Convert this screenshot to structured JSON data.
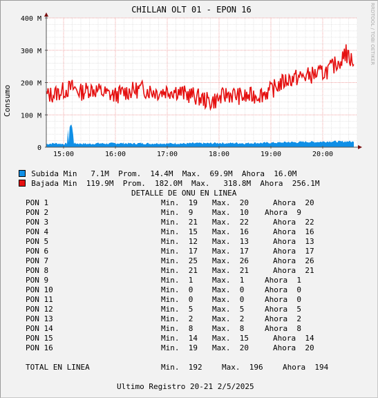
{
  "watermark": "RRDTOOL / TOBI OETIKER",
  "chart_data": {
    "type": "area",
    "title": "CHILLAN OLT 01 - EPON 16",
    "xlabel": "",
    "ylabel": "Consumo",
    "xlim": [
      "14:40",
      "20:40"
    ],
    "ylim": [
      0,
      400
    ],
    "y_unit": "M",
    "y_ticks": [
      0,
      100,
      200,
      300,
      400
    ],
    "y_tick_labels": [
      "0",
      "100 M",
      "200 M",
      "300 M",
      "400 M"
    ],
    "x_ticks": [
      "15:00",
      "16:00",
      "17:00",
      "18:00",
      "19:00",
      "20:00"
    ],
    "grid": true,
    "series": [
      {
        "name": "Subida",
        "style": "area",
        "color": "#0f8fe6",
        "x": [
          "14:40",
          "14:50",
          "15:00",
          "15:10",
          "15:20",
          "15:30",
          "15:40",
          "15:50",
          "16:00",
          "16:10",
          "16:20",
          "16:30",
          "16:40",
          "16:50",
          "17:00",
          "17:10",
          "17:20",
          "17:30",
          "17:40",
          "17:50",
          "18:00",
          "18:10",
          "18:20",
          "18:30",
          "18:40",
          "18:50",
          "19:00",
          "19:10",
          "19:20",
          "19:30",
          "19:40",
          "19:50",
          "20:00",
          "20:10",
          "20:20",
          "20:30",
          "20:36"
        ],
        "values": [
          10,
          12,
          10,
          12,
          11,
          10,
          12,
          11,
          12,
          12,
          11,
          12,
          11,
          12,
          11,
          12,
          11,
          12,
          12,
          12,
          13,
          12,
          13,
          12,
          13,
          13,
          14,
          14,
          16,
          15,
          17,
          16,
          17,
          18,
          17,
          18,
          16
        ]
      },
      {
        "name": "Bajada",
        "style": "line",
        "color": "#e51010",
        "x": [
          "14:40",
          "14:50",
          "15:00",
          "15:10",
          "15:20",
          "15:30",
          "15:40",
          "15:50",
          "16:00",
          "16:10",
          "16:20",
          "16:30",
          "16:40",
          "16:50",
          "17:00",
          "17:10",
          "17:20",
          "17:30",
          "17:40",
          "17:50",
          "18:00",
          "18:10",
          "18:20",
          "18:30",
          "18:40",
          "18:50",
          "19:00",
          "19:10",
          "19:20",
          "19:30",
          "19:40",
          "19:50",
          "20:00",
          "20:10",
          "20:20",
          "20:30",
          "20:36"
        ],
        "values": [
          160,
          165,
          175,
          185,
          170,
          180,
          175,
          165,
          160,
          170,
          175,
          180,
          175,
          170,
          175,
          175,
          165,
          160,
          150,
          140,
          150,
          165,
          160,
          155,
          160,
          165,
          175,
          195,
          210,
          215,
          220,
          225,
          230,
          245,
          270,
          285,
          256
        ]
      }
    ],
    "spikes": [
      {
        "series": "Subida",
        "x": [
          "15:05",
          "15:07",
          "15:08",
          "15:09",
          "15:10",
          "15:11"
        ],
        "values": [
          55,
          62,
          68,
          70,
          60,
          40
        ]
      },
      {
        "series": "Bajada",
        "x": [
          "20:25",
          "20:27",
          "20:29"
        ],
        "values": [
          305,
          318,
          300
        ]
      }
    ]
  },
  "legend": {
    "subida": "Subida Min   7.1M  Prom.  14.4M  Max.  69.9M  Ahora  16.0M",
    "bajada": "Bajada Min  119.9M  Prom.  182.0M  Max.   318.8M  Ahora  256.1M"
  },
  "detail": {
    "heading": "DETALLE DE ONU EN LINEA",
    "rows": [
      {
        "name": "PON 1",
        "min": "Min.  19",
        "max": "Max.  20",
        "now": "Ahora  20"
      },
      {
        "name": "PON 2",
        "min": "Min.  9",
        "max": "Max.  10",
        "now": "Ahora  9"
      },
      {
        "name": "PON 3",
        "min": "Min.  21",
        "max": "Max.  22",
        "now": "Ahora  22"
      },
      {
        "name": "PON 4",
        "min": "Min.  15",
        "max": "Max.  16",
        "now": "Ahora  16"
      },
      {
        "name": "PON 5",
        "min": "Min.  12",
        "max": "Max.  13",
        "now": "Ahora  13"
      },
      {
        "name": "PON 6",
        "min": "Min.  17",
        "max": "Max.  17",
        "now": "Ahora  17"
      },
      {
        "name": "PON 7",
        "min": "Min.  25",
        "max": "Max.  26",
        "now": "Ahora  26"
      },
      {
        "name": "PON 8",
        "min": "Min.  21",
        "max": "Max.  21",
        "now": "Ahora  21"
      },
      {
        "name": "PON 9",
        "min": "Min.  1",
        "max": "Max.  1",
        "now": "Ahora  1"
      },
      {
        "name": "PON 10",
        "min": "Min.  0",
        "max": "Max.  0",
        "now": "Ahora  0"
      },
      {
        "name": "PON 11",
        "min": "Min.  0",
        "max": "Max.  0",
        "now": "Ahora  0"
      },
      {
        "name": "PON 12",
        "min": "Min.  5",
        "max": "Max.  5",
        "now": "Ahora  5"
      },
      {
        "name": "PON 13",
        "min": "Min.  2",
        "max": "Max.  2",
        "now": "Ahora  2"
      },
      {
        "name": "PON 14",
        "min": "Min.  8",
        "max": "Max.  8",
        "now": "Ahora  8"
      },
      {
        "name": "PON 15",
        "min": "Min.  14",
        "max": "Max.  15",
        "now": "Ahora  14"
      },
      {
        "name": "PON 16",
        "min": "Min.  19",
        "max": "Max.  20",
        "now": "Ahora  20"
      }
    ]
  },
  "total": {
    "label": "TOTAL EN LINEA",
    "min_text": "Min.  192",
    "max_text": "Max.  196",
    "now_text": "Ahora  194"
  },
  "footer": {
    "last_record": "Ultimo Registro 20-21 2/5/2025"
  }
}
